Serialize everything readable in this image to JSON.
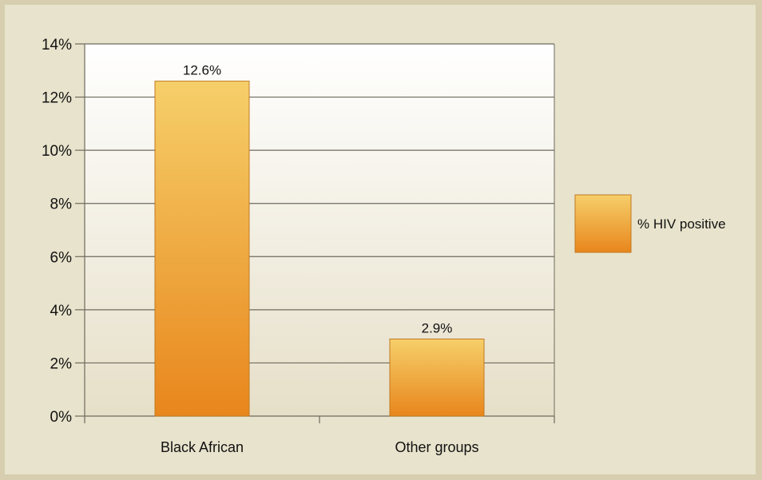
{
  "chart_data": {
    "type": "bar",
    "categories": [
      "Black African",
      "Other groups"
    ],
    "series": [
      {
        "name": "% HIV positive",
        "values": [
          12.6,
          2.9
        ],
        "labels": [
          "12.6%",
          "2.9%"
        ]
      }
    ],
    "ylim": [
      0,
      14
    ],
    "yticks": [
      "0%",
      "2%",
      "4%",
      "6%",
      "8%",
      "10%",
      "12%",
      "14%"
    ],
    "grid": true,
    "legend_position": "right",
    "colors": {
      "bar_top": "#f6cf6a",
      "bar_bottom": "#e8861c",
      "bar_stroke": "#c07a22",
      "grid": "#6e6a5e",
      "plot_top": "#ffffff",
      "plot_bottom": "#e6dfc8"
    }
  }
}
